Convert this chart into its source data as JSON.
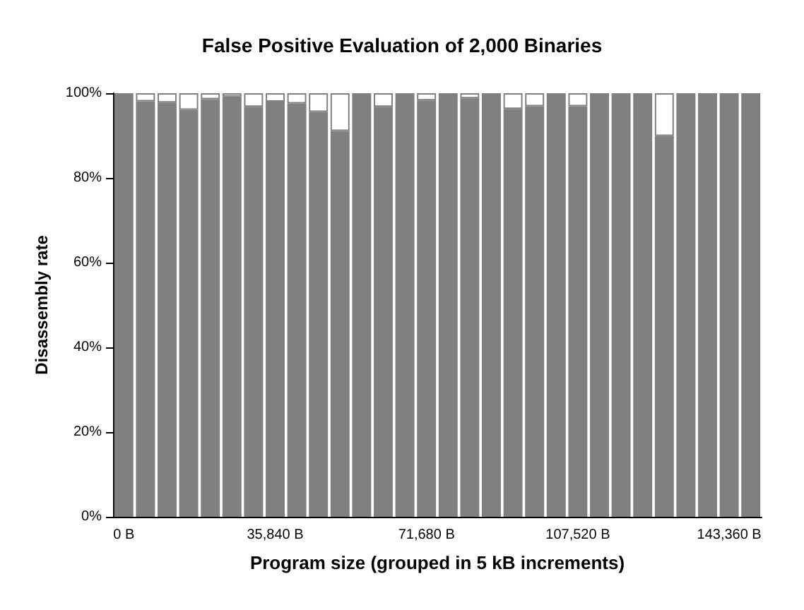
{
  "chart_data": {
    "type": "bar",
    "title": "False Positive Evaluation of 2,000 Binaries",
    "xlabel": "Program size (grouped in 5 kB increments)",
    "ylabel": "Disassembly rate",
    "categories": [
      "0 B",
      null,
      null,
      null,
      null,
      null,
      null,
      "35,840 B",
      null,
      null,
      null,
      null,
      null,
      null,
      "71,680 B",
      null,
      null,
      null,
      null,
      null,
      null,
      "107,520 B",
      null,
      null,
      null,
      null,
      null,
      null,
      "143,360 B",
      null
    ],
    "stacked": true,
    "series": [
      {
        "color": "#808080",
        "values": [
          100,
          98.1,
          97.8,
          96.1,
          98.6,
          99.2,
          96.8,
          98.0,
          97.6,
          95.6,
          91.1,
          100,
          96.8,
          100,
          98.3,
          100,
          98.8,
          100,
          96.3,
          96.9,
          100,
          96.9,
          100,
          100,
          100,
          89.9,
          100,
          100,
          100,
          100
        ]
      },
      {
        "color": "#ffffff",
        "values": [
          0,
          1.9,
          2.2,
          3.9,
          1.4,
          0.8,
          3.2,
          2.0,
          2.4,
          4.4,
          8.9,
          0,
          3.2,
          0,
          1.7,
          0,
          1.2,
          0,
          3.7,
          3.1,
          0,
          3.1,
          0,
          0,
          0,
          10.1,
          0,
          0,
          0,
          0
        ]
      }
    ],
    "ylim": [
      0,
      100
    ],
    "yticks": [
      {
        "value": 0,
        "label": "0%"
      },
      {
        "value": 20,
        "label": "20%"
      },
      {
        "value": 40,
        "label": "40%"
      },
      {
        "value": 60,
        "label": "60%"
      },
      {
        "value": 80,
        "label": "80%"
      },
      {
        "value": 100,
        "label": "100%"
      }
    ],
    "grid": false
  }
}
